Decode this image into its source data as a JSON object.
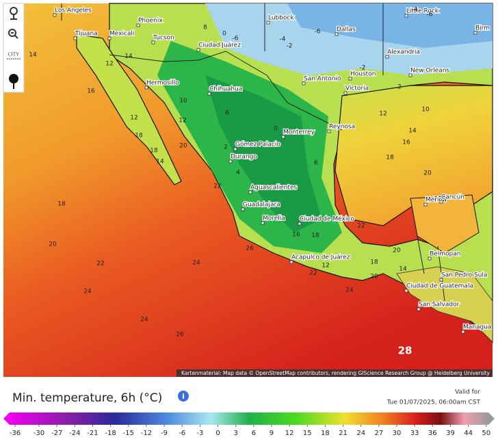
{
  "toolbar": {
    "city_button": "CITY"
  },
  "map": {
    "cities": [
      "Los Angeles",
      "Phoenix",
      "Tijuana",
      "Mexicali",
      "Tucson",
      "Ciudad Juárez",
      "Lubbock",
      "Dallas",
      "Little Rock",
      "Birm",
      "Alexandria",
      "New Orleans",
      "Houston",
      "San Antonio",
      "Victoria",
      "Hermosillo",
      "Chihuahua",
      "Monterrey",
      "Reynosa",
      "Gómez Palacio",
      "Durango",
      "Aguascalientes",
      "Guadalajara",
      "Morelia",
      "Ciudad de México",
      "Mérida",
      "Cancún",
      "Acapulco de Juárez",
      "Belmopan",
      "San Pedro Sula",
      "Ciudad de Guatemala",
      "San Salvador",
      "Managua"
    ],
    "contour_labels": [
      14,
      16,
      12,
      14,
      18,
      20,
      22,
      24,
      24,
      26,
      24,
      22,
      20,
      18,
      14,
      12,
      18,
      12,
      22,
      28,
      20,
      18,
      16,
      14,
      12,
      10,
      -4,
      -6,
      -6,
      -4,
      -2,
      0,
      -6,
      -2,
      2,
      24,
      20,
      18,
      14,
      20,
      26,
      22,
      12,
      16,
      18,
      8,
      6,
      10,
      2,
      4,
      6,
      0
    ],
    "attribution": "Kartenmaterial: Map data © OpenStreetMap contributors, rendering GIScience Research Group @ Heidelberg University"
  },
  "legend": {
    "title": "Min. temperature, 6h (°C)",
    "valid_label": "Valid for",
    "valid_time": "Tue 01/07/2025, 06:00am CST",
    "ticks": [
      -36,
      -30,
      -27,
      -24,
      -21,
      -18,
      -15,
      -12,
      -9,
      -6,
      -3,
      0,
      3,
      6,
      9,
      12,
      15,
      18,
      21,
      24,
      27,
      30,
      33,
      36,
      39,
      44,
      50
    ]
  }
}
